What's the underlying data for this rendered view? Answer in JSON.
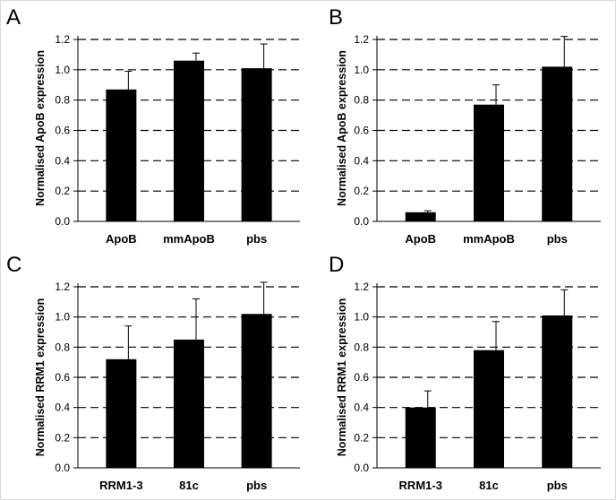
{
  "chart_data": [
    {
      "panel": "A",
      "type": "bar",
      "categories": [
        "ApoB",
        "mmApoB",
        "pbs"
      ],
      "values": [
        0.87,
        1.06,
        1.01
      ],
      "errors": [
        0.12,
        0.05,
        0.16
      ],
      "ylabel": "Normalised ApoB expression",
      "xlabel": "",
      "ylim": [
        0,
        1.2
      ],
      "yticks": [
        "0.0",
        "0.2",
        "0.4",
        "0.6",
        "0.8",
        "1.0",
        "1.2"
      ],
      "grid": "dashed horizontal",
      "bar_color": "#000000"
    },
    {
      "panel": "B",
      "type": "bar",
      "categories": [
        "ApoB",
        "mmApoB",
        "pbs"
      ],
      "values": [
        0.06,
        0.77,
        1.02
      ],
      "errors": [
        0.01,
        0.13,
        0.2
      ],
      "ylabel": "Normalised ApoB expression",
      "xlabel": "",
      "ylim": [
        0,
        1.2
      ],
      "yticks": [
        "0.0",
        "0.2",
        "0.4",
        "0.6",
        "0.8",
        "1.0",
        "1.2"
      ],
      "grid": "dashed horizontal",
      "bar_color": "#000000"
    },
    {
      "panel": "C",
      "type": "bar",
      "categories": [
        "RRM1-3",
        "81c",
        "pbs"
      ],
      "values": [
        0.72,
        0.85,
        1.02
      ],
      "errors": [
        0.22,
        0.27,
        0.21
      ],
      "ylabel": "Normalised RRM1 expression",
      "xlabel": "",
      "ylim": [
        0,
        1.2
      ],
      "yticks": [
        "0.0",
        "0.2",
        "0.4",
        "0.6",
        "0.8",
        "1.0",
        "1.2"
      ],
      "grid": "dashed horizontal",
      "bar_color": "#000000"
    },
    {
      "panel": "D",
      "type": "bar",
      "categories": [
        "RRM1-3",
        "81c",
        "pbs"
      ],
      "values": [
        0.4,
        0.78,
        1.01
      ],
      "errors": [
        0.11,
        0.19,
        0.17
      ],
      "ylabel": "Normalised RRM1 expression",
      "xlabel": "",
      "ylim": [
        0,
        1.2
      ],
      "yticks": [
        "0.0",
        "0.2",
        "0.4",
        "0.6",
        "0.8",
        "1.0",
        "1.2"
      ],
      "grid": "dashed horizontal",
      "bar_color": "#000000"
    }
  ]
}
